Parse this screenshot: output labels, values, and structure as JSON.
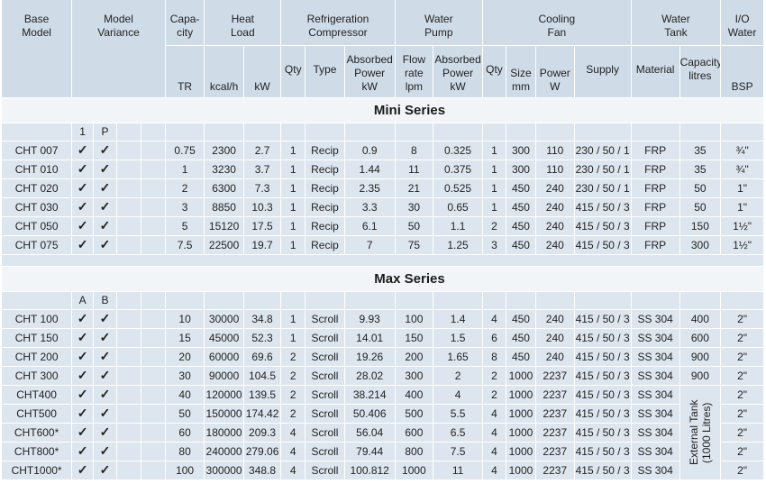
{
  "headers": {
    "base_model": "Base Model",
    "model_variance": "Model Variance",
    "capacity": "Capa-city",
    "capacity_line1": "Capa-",
    "capacity_line2": "city",
    "heat_load_line1": "Heat",
    "heat_load_line2": "Load",
    "refrigeration_line1": "Refrigeration",
    "refrigeration_line2": "Compressor",
    "water_pump_line1": "Water",
    "water_pump_line2": "Pump",
    "cooling_fan_line1": "Cooling",
    "cooling_fan_line2": "Fan",
    "water_tank_line1": "Water",
    "water_tank_line2": "Tank",
    "io_water_line1": "I/O",
    "io_water_line2": "Water",
    "base_line1": "Base",
    "base_line2": "Model",
    "variance_line1": "Model",
    "variance_line2": "Variance",
    "sub": {
      "tr": "TR",
      "kcal": "kcal/h",
      "kw": "kW",
      "qty": "Qty",
      "type": "Type",
      "abs_power_1": "Absorbed",
      "abs_power_2": "Power",
      "abs_power_3": "kW",
      "flow_1": "Flow",
      "flow_2": "rate",
      "flow_3": "lpm",
      "pabs_1": "Absorbed",
      "pabs_2": "Power",
      "pabs_3": "kW",
      "fan_qty": "Qty",
      "size_1": "Size",
      "size_2": "mm",
      "fpower_1": "Power",
      "fpower_2": "W",
      "supply": "Supply",
      "material": "Material",
      "cap_1": "Capacity",
      "cap_2": "litres",
      "bsp": "BSP"
    }
  },
  "mini": {
    "title": "Mini Series",
    "variant_a": "1",
    "variant_b": "P",
    "rows": [
      [
        "CHT 007",
        "✓",
        "✓",
        "0.75",
        "2300",
        "2.7",
        "1",
        "Recip",
        "0.9",
        "8",
        "0.325",
        "1",
        "300",
        "110",
        "230 / 50 / 1",
        "FRP",
        "35",
        "¾\""
      ],
      [
        "CHT 010",
        "✓",
        "✓",
        "1",
        "3230",
        "3.7",
        "1",
        "Recip",
        "1.44",
        "11",
        "0.375",
        "1",
        "300",
        "110",
        "230 / 50 / 1",
        "FRP",
        "35",
        "¾\""
      ],
      [
        "CHT 020",
        "✓",
        "✓",
        "2",
        "6300",
        "7.3",
        "1",
        "Recip",
        "2.35",
        "21",
        "0.525",
        "1",
        "450",
        "240",
        "230 / 50 / 1",
        "FRP",
        "50",
        "1\""
      ],
      [
        "CHT 030",
        "✓",
        "✓",
        "3",
        "8850",
        "10.3",
        "1",
        "Recip",
        "3.3",
        "30",
        "0.65",
        "1",
        "450",
        "240",
        "415 / 50 / 3",
        "FRP",
        "50",
        "1\""
      ],
      [
        "CHT 050",
        "✓",
        "✓",
        "5",
        "15120",
        "17.5",
        "1",
        "Recip",
        "6.1",
        "50",
        "1.1",
        "2",
        "450",
        "240",
        "415 / 50 / 3",
        "FRP",
        "150",
        "1½\""
      ],
      [
        "CHT 075",
        "✓",
        "✓",
        "7.5",
        "22500",
        "19.7",
        "1",
        "Recip",
        "7",
        "75",
        "1.25",
        "3",
        "450",
        "240",
        "415 / 50 / 3",
        "FRP",
        "300",
        "1½\""
      ]
    ]
  },
  "max": {
    "title": "Max Series",
    "variant_a": "A",
    "variant_b": "B",
    "external_tank": "External Tank (1000 Litres)",
    "rows": [
      [
        "CHT 100",
        "✓",
        "✓",
        "10",
        "30000",
        "34.8",
        "1",
        "Scroll",
        "9.93",
        "100",
        "1.4",
        "4",
        "450",
        "240",
        "415 / 50 / 3",
        "SS 304",
        "400",
        "2\""
      ],
      [
        "CHT 150",
        "✓",
        "✓",
        "15",
        "45000",
        "52.3",
        "1",
        "Scroll",
        "14.01",
        "150",
        "1.5",
        "6",
        "450",
        "240",
        "415 / 50 / 3",
        "SS 304",
        "600",
        "2\""
      ],
      [
        "CHT 200",
        "✓",
        "✓",
        "20",
        "60000",
        "69.6",
        "2",
        "Scroll",
        "19.26",
        "200",
        "1.65",
        "8",
        "450",
        "240",
        "415 / 50 / 3",
        "SS 304",
        "900",
        "2\""
      ],
      [
        "CHT 300",
        "✓",
        "✓",
        "30",
        "90000",
        "104.5",
        "2",
        "Scroll",
        "28.02",
        "300",
        "2",
        "2",
        "1000",
        "2237",
        "415 / 50 / 3",
        "SS 304",
        "900",
        "2\""
      ],
      [
        "CHT400",
        "✓",
        "✓",
        "40",
        "120000",
        "139.5",
        "2",
        "Scroll",
        "38.214",
        "400",
        "4",
        "2",
        "1000",
        "2237",
        "415 / 50 / 3",
        "SS 304",
        "",
        "2\""
      ],
      [
        "CHT500",
        "✓",
        "✓",
        "50",
        "150000",
        "174.42",
        "2",
        "Scroll",
        "50.406",
        "500",
        "5.5",
        "4",
        "1000",
        "2237",
        "415 / 50 / 3",
        "SS 304",
        "",
        "2\""
      ],
      [
        "CHT600*",
        "✓",
        "✓",
        "60",
        "180000",
        "209.3",
        "4",
        "Scroll",
        "56.04",
        "600",
        "6.5",
        "4",
        "1000",
        "2237",
        "415 / 50 / 3",
        "SS 304",
        "",
        "2\""
      ],
      [
        "CHT800*",
        "✓",
        "✓",
        "80",
        "240000",
        "279.06",
        "4",
        "Scroll",
        "79.44",
        "800",
        "7.5",
        "4",
        "1000",
        "2237",
        "415 / 50 / 3",
        "SS 304",
        "",
        "2\""
      ],
      [
        "CHT1000*",
        "✓",
        "✓",
        "100",
        "300000",
        "348.8",
        "4",
        "Scroll",
        "100.812",
        "1000",
        "11",
        "4",
        "1000",
        "2237",
        "415 / 50 / 3",
        "SS 304",
        "",
        "2\""
      ]
    ]
  }
}
